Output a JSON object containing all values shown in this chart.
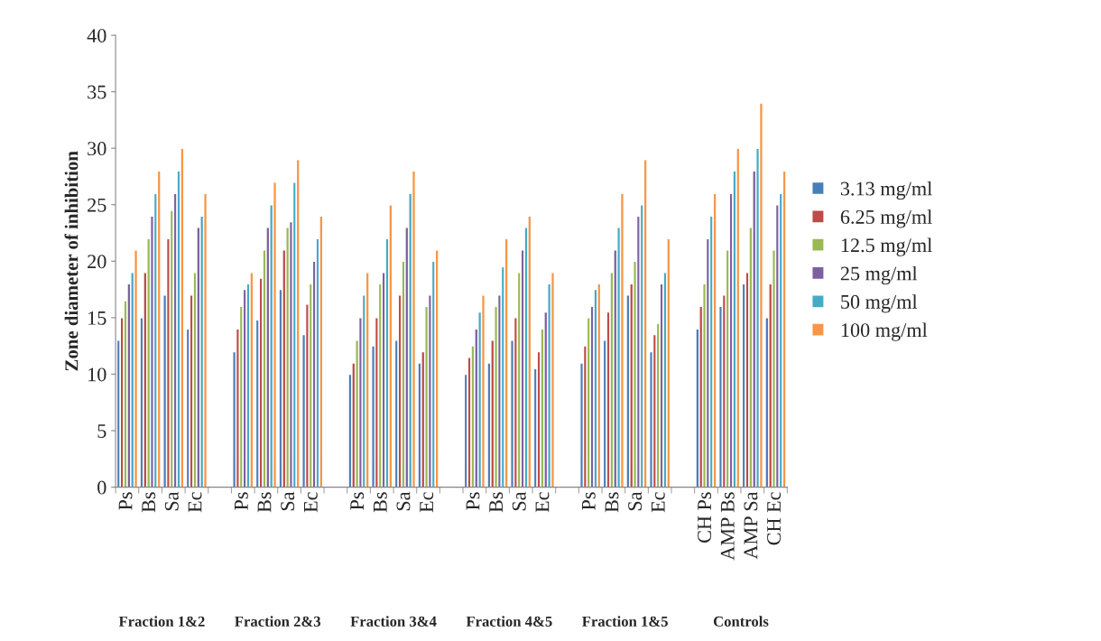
{
  "chart_data": {
    "type": "bar",
    "ylabel": "Zone diameter of inhibition",
    "categories": [
      "Ps",
      "Bs",
      "Sa",
      "Ec",
      null,
      "Ps",
      "Bs",
      "Sa",
      "Ec",
      null,
      "Ps",
      "Bs",
      "Sa",
      "Ec",
      null,
      "Ps",
      "Bs",
      "Sa",
      "Ec",
      null,
      "Ps",
      "Bs",
      "Sa",
      "Ec",
      null,
      "CH Ps",
      "AMP Bs",
      "AMP Sa",
      "CH Ec"
    ],
    "series": [
      {
        "name": "3.13 mg/ml",
        "color": "#4a7ebb",
        "values": [
          13,
          15,
          17,
          14,
          null,
          12,
          14.8,
          17.5,
          13.5,
          null,
          10,
          12.5,
          13,
          11,
          null,
          10,
          11,
          13,
          10.5,
          null,
          11,
          13,
          17,
          12,
          null,
          14,
          16,
          18,
          15
        ]
      },
      {
        "name": "6.25 mg/ml",
        "color": "#be4b48",
        "values": [
          15,
          19,
          22,
          17,
          null,
          14,
          18.5,
          21,
          16.2,
          null,
          11,
          15,
          17,
          12,
          null,
          11.5,
          13,
          15,
          12,
          null,
          12.5,
          15.5,
          18,
          13.5,
          null,
          16,
          17,
          19,
          18
        ]
      },
      {
        "name": "12.5 mg/ml",
        "color": "#98b954",
        "values": [
          16.5,
          22,
          24.5,
          19,
          null,
          16,
          21,
          23,
          18,
          null,
          13,
          18,
          20,
          16,
          null,
          12.5,
          16,
          19,
          14,
          null,
          15,
          19,
          20,
          14.5,
          null,
          18,
          21,
          23,
          21
        ]
      },
      {
        "name": "25 mg/ml",
        "color": "#7d60a0",
        "values": [
          18,
          24,
          26,
          23,
          null,
          17.5,
          23,
          23.5,
          20,
          null,
          15,
          19,
          23,
          17,
          null,
          14,
          17,
          21,
          15.5,
          null,
          16,
          21,
          24,
          18,
          null,
          22,
          26,
          28,
          25
        ]
      },
      {
        "name": "50 mg/ml",
        "color": "#46aac5",
        "values": [
          19,
          26,
          28,
          24,
          null,
          18,
          25,
          27,
          22,
          null,
          17,
          22,
          26,
          20,
          null,
          15.5,
          19.5,
          23,
          18,
          null,
          17.5,
          23,
          25,
          19,
          null,
          24,
          28,
          30,
          26
        ]
      },
      {
        "name": "100 mg/ml",
        "color": "#f79646",
        "values": [
          21,
          28,
          30,
          26,
          null,
          19,
          27,
          29,
          24,
          null,
          19,
          25,
          28,
          21,
          null,
          17,
          22,
          24,
          19,
          null,
          18,
          26,
          29,
          22,
          null,
          26,
          30,
          34,
          28
        ]
      }
    ],
    "ylim": [
      0,
      40
    ],
    "yticks": [
      0,
      5,
      10,
      15,
      20,
      25,
      30,
      35,
      40
    ],
    "legend": "right",
    "grid": false,
    "annotations": [
      "Fraction 1&2",
      "Fraction 2&3",
      "Fraction 3&4",
      "Fraction 4&5",
      "Fraction 1&5",
      "Controls"
    ]
  }
}
